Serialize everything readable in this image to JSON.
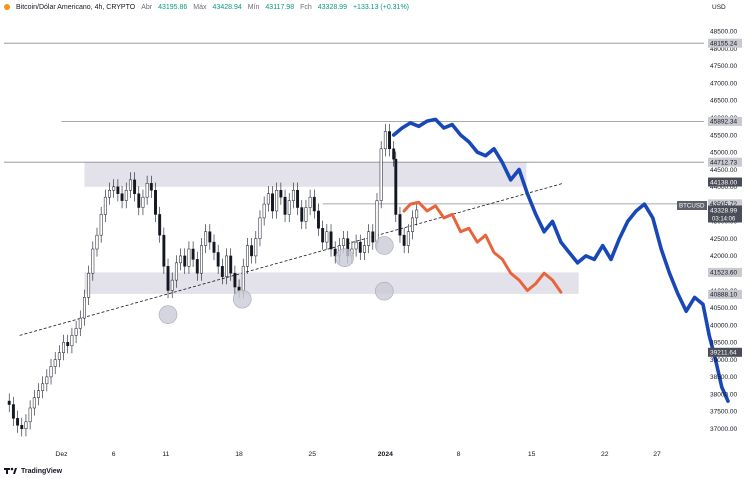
{
  "header": {
    "symbol": "Bitcoin/Dólar Americano, 4h, CRYPTO",
    "open_label": "Abr",
    "open": "43195.86",
    "high_label": "Máx",
    "high": "43428.94",
    "low_label": "Mín",
    "low": "43117.98",
    "close_label": "Fch",
    "close": "43328.99",
    "change": "+133.13 (+0.31%)"
  },
  "footer": {
    "brand": "TradingView"
  },
  "colors": {
    "up_candle": "#131722",
    "down_candle": "#131722",
    "blue_projection": "#1848b8",
    "orange_projection": "#e8643c",
    "zone_fill": "#d9d8e3",
    "marker": "#c9cad6"
  },
  "chart_data": {
    "type": "line",
    "currency": "USD",
    "ylim": [
      36500,
      49000
    ],
    "y_ticks": [
      "48500.00",
      "48000.00",
      "47500.00",
      "47000.00",
      "46500.00",
      "46000.00",
      "45500.00",
      "45000.00",
      "44500.00",
      "44000.00",
      "43500.00",
      "43000.00",
      "42500.00",
      "42000.00",
      "41500.00",
      "41000.00",
      "40500.00",
      "40000.00",
      "39500.00",
      "39000.00",
      "38500.00",
      "38000.00",
      "37500.00",
      "37000.00"
    ],
    "x_ticks": [
      {
        "label": "Dez",
        "day": 1
      },
      {
        "label": "6",
        "day": 6
      },
      {
        "label": "11",
        "day": 11
      },
      {
        "label": "18",
        "day": 18
      },
      {
        "label": "25",
        "day": 25
      },
      {
        "label": "2024",
        "day": 32
      },
      {
        "label": "8",
        "day": 39
      },
      {
        "label": "15",
        "day": 46
      },
      {
        "label": "22",
        "day": 53
      },
      {
        "label": "27",
        "day": 58
      }
    ],
    "xlim": [
      -4.5,
      62.5
    ],
    "price_labels": [
      {
        "value": 48155.24,
        "text": "48155.24",
        "style": "gray"
      },
      {
        "value": 45892.34,
        "text": "45892.34",
        "style": "gray"
      },
      {
        "value": 44712.73,
        "text": "44712.73",
        "style": "gray"
      },
      {
        "value": 44138.0,
        "text": "44138.00",
        "style": "dark"
      },
      {
        "value": 43505.72,
        "text": "43505.72",
        "style": "gray"
      },
      {
        "value": 43328.99,
        "text": "43328.99",
        "style": "dark",
        "tag": "BTCUSD",
        "sub": "03:14:06"
      },
      {
        "value": 41523.6,
        "text": "41523.60",
        "style": "gray"
      },
      {
        "value": 40888.1,
        "text": "40888.10",
        "style": "gray"
      },
      {
        "value": 39211.64,
        "text": "39211.64",
        "style": "dark"
      }
    ],
    "horizontal_lines": [
      {
        "value": 48155.24,
        "day_start": -4.5
      },
      {
        "value": 45892.34,
        "day_start": 1
      },
      {
        "value": 44712.73,
        "day_start": -4.5
      },
      {
        "value": 43505.72,
        "day_start": 26
      }
    ],
    "zones": [
      {
        "from": 44000,
        "to": 44712.73,
        "day_start": 3.2,
        "day_end": 45.5
      },
      {
        "from": 40900,
        "to": 41523.6,
        "day_start": 3.2,
        "day_end": 50.5
      }
    ],
    "trendline": {
      "points": [
        [
          -3,
          39700
        ],
        [
          49,
          44100
        ]
      ],
      "style": "dashed"
    },
    "markers": [
      {
        "day": 11.2,
        "price": 40300
      },
      {
        "day": 18.3,
        "price": 40750
      },
      {
        "day": 28.1,
        "price": 41950
      },
      {
        "day": 31.9,
        "price": 42300
      },
      {
        "day": 31.9,
        "price": 40980
      }
    ],
    "series": [
      {
        "style": "candles",
        "points": [
          [
            -4.5,
            37800
          ],
          [
            -4,
            37700
          ],
          [
            -3.6,
            37300
          ],
          [
            -3.2,
            37100
          ],
          [
            -2.8,
            37000
          ],
          [
            -2.4,
            37200
          ],
          [
            -2,
            37600
          ],
          [
            -1.6,
            37900
          ],
          [
            -1.2,
            38100
          ],
          [
            -0.8,
            38300
          ],
          [
            -0.4,
            38500
          ],
          [
            0,
            38800
          ],
          [
            0.4,
            39000
          ],
          [
            0.8,
            39200
          ],
          [
            1.2,
            39500
          ],
          [
            1.6,
            39400
          ],
          [
            2,
            39700
          ],
          [
            2.4,
            39900
          ],
          [
            2.8,
            40200
          ],
          [
            3.2,
            40800
          ],
          [
            3.6,
            41500
          ],
          [
            4,
            42200
          ],
          [
            4.4,
            42600
          ],
          [
            4.8,
            43200
          ],
          [
            5.2,
            43700
          ],
          [
            5.6,
            43900
          ],
          [
            6,
            44000
          ],
          [
            6.4,
            43800
          ],
          [
            6.8,
            43600
          ],
          [
            7.2,
            43900
          ],
          [
            7.6,
            44200
          ],
          [
            8,
            43800
          ],
          [
            8.4,
            43400
          ],
          [
            8.8,
            43700
          ],
          [
            9.2,
            44100
          ],
          [
            9.6,
            43900
          ],
          [
            10,
            43200
          ],
          [
            10.4,
            42600
          ],
          [
            10.8,
            41700
          ],
          [
            11.2,
            41000
          ],
          [
            11.6,
            41300
          ],
          [
            12,
            41800
          ],
          [
            12.4,
            42000
          ],
          [
            12.8,
            41700
          ],
          [
            13.2,
            42200
          ],
          [
            13.6,
            41900
          ],
          [
            14,
            41500
          ],
          [
            14.4,
            42300
          ],
          [
            14.8,
            42700
          ],
          [
            15.2,
            42400
          ],
          [
            15.6,
            42100
          ],
          [
            16,
            41700
          ],
          [
            16.4,
            41400
          ],
          [
            16.8,
            42000
          ],
          [
            17.2,
            41500
          ],
          [
            17.6,
            41100
          ],
          [
            18,
            41000
          ],
          [
            18.4,
            41700
          ],
          [
            18.8,
            42300
          ],
          [
            19.2,
            42000
          ],
          [
            19.6,
            42500
          ],
          [
            20,
            43100
          ],
          [
            20.4,
            43500
          ],
          [
            20.8,
            43800
          ],
          [
            21.2,
            43300
          ],
          [
            21.6,
            43900
          ],
          [
            22,
            43700
          ],
          [
            22.4,
            43200
          ],
          [
            22.8,
            43600
          ],
          [
            23.2,
            43900
          ],
          [
            23.6,
            43400
          ],
          [
            24,
            43000
          ],
          [
            24.4,
            43400
          ],
          [
            24.8,
            43700
          ],
          [
            25.2,
            43300
          ],
          [
            25.6,
            42800
          ],
          [
            26,
            42400
          ],
          [
            26.4,
            42700
          ],
          [
            26.8,
            42200
          ],
          [
            27.2,
            42000
          ],
          [
            27.6,
            42300
          ],
          [
            28,
            42500
          ],
          [
            28.4,
            42000
          ],
          [
            28.8,
            42200
          ],
          [
            29.2,
            42400
          ],
          [
            29.6,
            42100
          ],
          [
            30,
            42300
          ],
          [
            30.4,
            42700
          ],
          [
            30.8,
            42400
          ],
          [
            31.2,
            43600
          ],
          [
            31.6,
            45100
          ],
          [
            32,
            45600
          ],
          [
            32.4,
            45100
          ],
          [
            32.8,
            44800
          ],
          [
            33,
            43200
          ],
          [
            33.4,
            42600
          ],
          [
            33.8,
            42300
          ],
          [
            34.2,
            42700
          ],
          [
            34.6,
            43100
          ],
          [
            35,
            43330
          ]
        ]
      },
      {
        "name": "",
        "style": "projection",
        "color": "#1848b8",
        "points": [
          [
            32.8,
            45500
          ],
          [
            33.6,
            45700
          ],
          [
            34.4,
            45850
          ],
          [
            35.2,
            45750
          ],
          [
            36,
            45900
          ],
          [
            36.8,
            45950
          ],
          [
            37.6,
            45700
          ],
          [
            38.4,
            45800
          ],
          [
            39.2,
            45500
          ],
          [
            40,
            45300
          ],
          [
            40.8,
            45000
          ],
          [
            41.6,
            44900
          ],
          [
            42.4,
            45100
          ],
          [
            43.2,
            44700
          ],
          [
            44,
            44200
          ],
          [
            44.8,
            44500
          ],
          [
            45.6,
            43800
          ],
          [
            46.4,
            43200
          ],
          [
            47.2,
            42700
          ],
          [
            48,
            43000
          ],
          [
            48.8,
            42400
          ],
          [
            49.6,
            42100
          ],
          [
            50.4,
            41800
          ],
          [
            51.2,
            42000
          ],
          [
            52,
            41900
          ],
          [
            52.8,
            42300
          ],
          [
            53.6,
            41900
          ],
          [
            54.4,
            42500
          ],
          [
            55.2,
            43000
          ],
          [
            56,
            43300
          ],
          [
            56.8,
            43500
          ],
          [
            57.6,
            43100
          ],
          [
            58.4,
            42200
          ],
          [
            59.2,
            41500
          ],
          [
            60,
            40900
          ],
          [
            60.8,
            40400
          ],
          [
            61.6,
            40800
          ],
          [
            62.4,
            40600
          ],
          [
            63,
            39700
          ],
          [
            63.6,
            39000
          ],
          [
            64.2,
            38200
          ],
          [
            64.8,
            37800
          ]
        ]
      },
      {
        "name": "",
        "style": "projection",
        "color": "#e8643c",
        "points": [
          [
            33.8,
            43300
          ],
          [
            34.4,
            43500
          ],
          [
            35.2,
            43550
          ],
          [
            36,
            43300
          ],
          [
            36.8,
            43450
          ],
          [
            37.6,
            43100
          ],
          [
            38.4,
            43200
          ],
          [
            39.2,
            42700
          ],
          [
            40,
            42800
          ],
          [
            40.8,
            42400
          ],
          [
            41.6,
            42600
          ],
          [
            42.4,
            42100
          ],
          [
            43.2,
            41900
          ],
          [
            44,
            41500
          ],
          [
            44.8,
            41300
          ],
          [
            45.6,
            41000
          ],
          [
            46.4,
            41200
          ],
          [
            47.2,
            41500
          ],
          [
            48,
            41300
          ],
          [
            48.8,
            40950
          ]
        ]
      }
    ]
  }
}
